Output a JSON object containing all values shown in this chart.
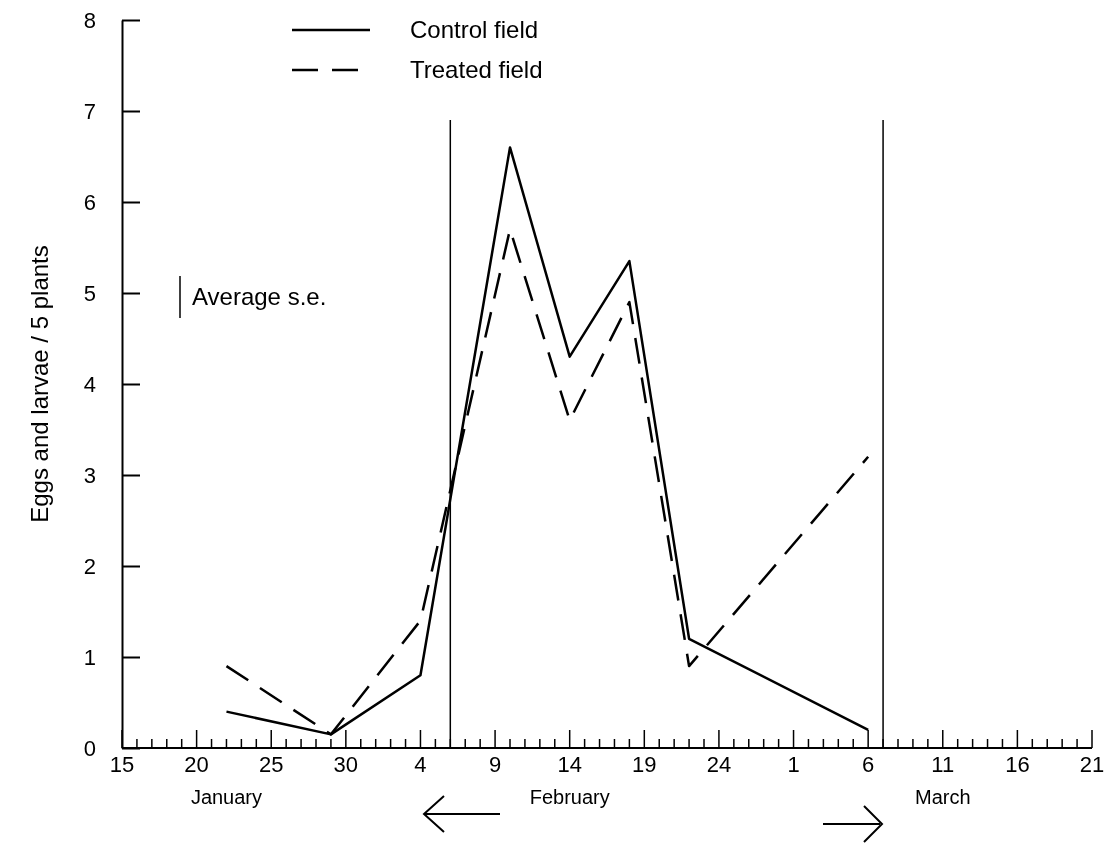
{
  "chart_data": {
    "type": "line",
    "ylabel": "Eggs and larvae / 5 plants",
    "xlim": [
      "--01-15",
      "--03-21"
    ],
    "xticks": [
      {
        "value": "--01-15",
        "label": "15"
      },
      {
        "value": "--01-16",
        "label": null
      },
      {
        "value": "--01-17",
        "label": null
      },
      {
        "value": "--01-18",
        "label": null
      },
      {
        "value": "--01-19",
        "label": null
      },
      {
        "value": "--01-20",
        "label": "20"
      },
      {
        "value": "--01-21",
        "label": null
      },
      {
        "value": "--01-22",
        "label": null
      },
      {
        "value": "--01-23",
        "label": null
      },
      {
        "value": "--01-24",
        "label": null
      },
      {
        "value": "--01-25",
        "label": "25"
      },
      {
        "value": "--01-26",
        "label": null
      },
      {
        "value": "--01-27",
        "label": null
      },
      {
        "value": "--01-28",
        "label": null
      },
      {
        "value": "--01-29",
        "label": null
      },
      {
        "value": "--01-30",
        "label": "30"
      },
      {
        "value": "--01-31",
        "label": null
      },
      {
        "value": "--02-01",
        "label": null
      },
      {
        "value": "--02-02",
        "label": null
      },
      {
        "value": "--02-03",
        "label": null
      },
      {
        "value": "--02-04",
        "label": "4"
      },
      {
        "value": "--02-05",
        "label": null
      },
      {
        "value": "--02-06",
        "label": null
      },
      {
        "value": "--02-07",
        "label": null
      },
      {
        "value": "--02-08",
        "label": null
      },
      {
        "value": "--02-09",
        "label": "9"
      },
      {
        "value": "--02-10",
        "label": null
      },
      {
        "value": "--02-11",
        "label": null
      },
      {
        "value": "--02-12",
        "label": null
      },
      {
        "value": "--02-13",
        "label": null
      },
      {
        "value": "--02-14",
        "label": "14"
      },
      {
        "value": "--02-15",
        "label": null
      },
      {
        "value": "--02-16",
        "label": null
      },
      {
        "value": "--02-17",
        "label": null
      },
      {
        "value": "--02-18",
        "label": null
      },
      {
        "value": "--02-19",
        "label": "19"
      },
      {
        "value": "--02-20",
        "label": null
      },
      {
        "value": "--02-21",
        "label": null
      },
      {
        "value": "--02-22",
        "label": null
      },
      {
        "value": "--02-23",
        "label": null
      },
      {
        "value": "--02-24",
        "label": "24"
      },
      {
        "value": "--02-25",
        "label": null
      },
      {
        "value": "--02-26",
        "label": null
      },
      {
        "value": "--02-27",
        "label": null
      },
      {
        "value": "--02-28",
        "label": null
      },
      {
        "value": "--03-01",
        "label": "1"
      },
      {
        "value": "--03-02",
        "label": null
      },
      {
        "value": "--03-03",
        "label": null
      },
      {
        "value": "--03-04",
        "label": null
      },
      {
        "value": "--03-05",
        "label": null
      },
      {
        "value": "--03-06",
        "label": "6"
      },
      {
        "value": "--03-07",
        "label": null
      },
      {
        "value": "--03-08",
        "label": null
      },
      {
        "value": "--03-09",
        "label": null
      },
      {
        "value": "--03-10",
        "label": null
      },
      {
        "value": "--03-11",
        "label": "11"
      },
      {
        "value": "--03-12",
        "label": null
      },
      {
        "value": "--03-13",
        "label": null
      },
      {
        "value": "--03-14",
        "label": null
      },
      {
        "value": "--03-15",
        "label": null
      },
      {
        "value": "--03-16",
        "label": "16"
      },
      {
        "value": "--03-17",
        "label": null
      },
      {
        "value": "--03-18",
        "label": null
      },
      {
        "value": "--03-19",
        "label": null
      },
      {
        "value": "--03-20",
        "label": null
      },
      {
        "value": "--03-21",
        "label": "21"
      }
    ],
    "ylim": [
      0,
      8
    ],
    "yticks": [
      0,
      1,
      2,
      3,
      4,
      5,
      6,
      7,
      8
    ],
    "series": [
      {
        "name": "Control field",
        "color": "#000000",
        "line_style": "solid",
        "x": [
          "--01-22",
          "--01-29",
          "--02-04",
          "--02-10",
          "--02-14",
          "--02-18",
          "--02-22",
          "--03-06"
        ],
        "values": [
          0.4,
          0.15,
          0.8,
          6.6,
          4.3,
          5.35,
          1.2,
          0.2
        ]
      },
      {
        "name": "Treated field",
        "color": "#000000",
        "line_style": "dashed",
        "x": [
          "--01-22",
          "--01-29",
          "--02-04",
          "--02-10",
          "--02-14",
          "--02-18",
          "--02-22",
          "--03-06"
        ],
        "values": [
          0.9,
          0.15,
          1.4,
          5.7,
          3.6,
          4.9,
          0.9,
          3.2
        ]
      }
    ],
    "ref_lines": [
      {
        "axis": "x",
        "value": "--02-06",
        "color": "#000000"
      },
      {
        "axis": "x",
        "value": "--03-07",
        "color": "#000000"
      }
    ],
    "annotations": [
      "Average s.e.",
      "January",
      "February",
      "March"
    ],
    "legend": "top",
    "grid": false
  }
}
